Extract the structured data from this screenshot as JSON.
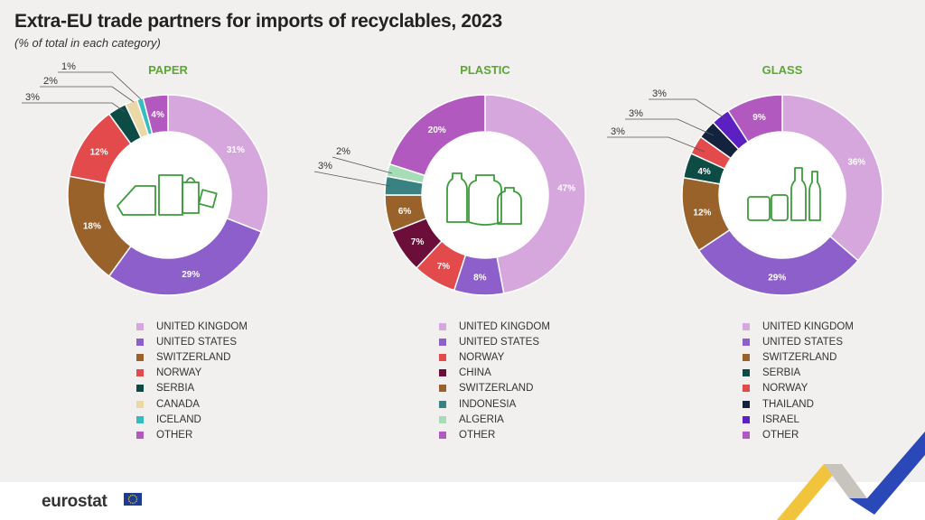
{
  "title": "Extra-EU trade partners for imports of recyclables, 2023",
  "subtitle": "(% of total in each category)",
  "footer": {
    "logo_text": "eurostat"
  },
  "chart_data": [
    {
      "type": "pie",
      "title": "PAPER",
      "icon": "paper-products-icon",
      "slices": [
        {
          "name": "UNITED KINGDOM",
          "value": 31,
          "label": "31%",
          "color": "#d6a7dc"
        },
        {
          "name": "UNITED STATES",
          "value": 29,
          "label": "29%",
          "color": "#8c5fcb"
        },
        {
          "name": "SWITZERLAND",
          "value": 18,
          "label": "18%",
          "color": "#99622a"
        },
        {
          "name": "NORWAY",
          "value": 12,
          "label": "12%",
          "color": "#e24a4b"
        },
        {
          "name": "SERBIA",
          "value": 3,
          "label": "3%",
          "color": "#0c4c45"
        },
        {
          "name": "CANADA",
          "value": 2,
          "label": "2%",
          "color": "#ead8a7"
        },
        {
          "name": "ICELAND",
          "value": 1,
          "label": "1%",
          "color": "#35bcbf"
        },
        {
          "name": "OTHER",
          "value": 4,
          "label": "4%",
          "color": "#b159bf"
        }
      ]
    },
    {
      "type": "pie",
      "title": "PLASTIC",
      "icon": "plastic-bottles-icon",
      "slices": [
        {
          "name": "UNITED KINGDOM",
          "value": 47,
          "label": "47%",
          "color": "#d6a7dc"
        },
        {
          "name": "UNITED STATES",
          "value": 8,
          "label": "8%",
          "color": "#8c5fcb"
        },
        {
          "name": "NORWAY",
          "value": 7,
          "label": "7%",
          "color": "#e24a4b"
        },
        {
          "name": "CHINA",
          "value": 7,
          "label": "7%",
          "color": "#6b0f3a"
        },
        {
          "name": "SWITZERLAND",
          "value": 6,
          "label": "6%",
          "color": "#99622a"
        },
        {
          "name": "INDONESIA",
          "value": 3,
          "label": "3%",
          "color": "#3a8182"
        },
        {
          "name": "ALGERIA",
          "value": 2,
          "label": "2%",
          "color": "#a6ddb6"
        },
        {
          "name": "OTHER",
          "value": 20,
          "label": "20%",
          "color": "#b159bf"
        }
      ]
    },
    {
      "type": "pie",
      "title": "GLASS",
      "icon": "glass-bottles-icon",
      "slices": [
        {
          "name": "UNITED KINGDOM",
          "value": 36,
          "label": "36%",
          "color": "#d6a7dc"
        },
        {
          "name": "UNITED STATES",
          "value": 29,
          "label": "29%",
          "color": "#8c5fcb"
        },
        {
          "name": "SWITZERLAND",
          "value": 12,
          "label": "12%",
          "color": "#99622a"
        },
        {
          "name": "SERBIA",
          "value": 4,
          "label": "4%",
          "color": "#0c4c45"
        },
        {
          "name": "NORWAY",
          "value": 3,
          "label": "3%",
          "color": "#e24a4b"
        },
        {
          "name": "THAILAND",
          "value": 3,
          "label": "3%",
          "color": "#13233d"
        },
        {
          "name": "ISRAEL",
          "value": 3,
          "label": "3%",
          "color": "#5b1fc2"
        },
        {
          "name": "OTHER",
          "value": 9,
          "label": "9%",
          "color": "#b159bf"
        }
      ]
    }
  ]
}
